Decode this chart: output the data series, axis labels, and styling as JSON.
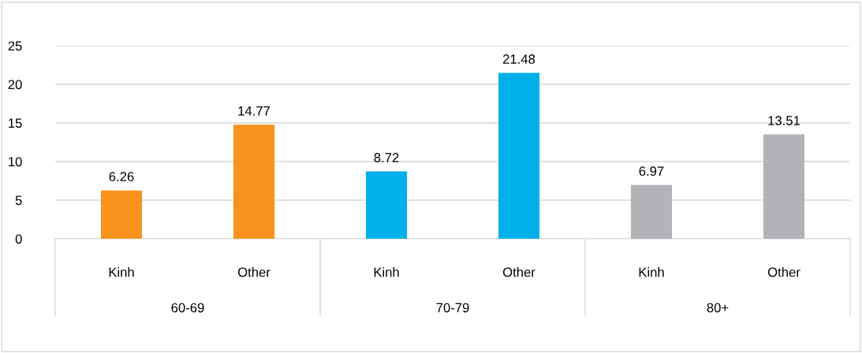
{
  "chart_data": {
    "type": "bar",
    "categories": [
      "Kinh",
      "Other",
      "Kinh",
      "Other",
      "Kinh",
      "Other"
    ],
    "values": [
      6.26,
      14.77,
      8.72,
      21.48,
      6.97,
      13.51
    ],
    "colors": [
      "#f7931e",
      "#f7931e",
      "#00b0e8",
      "#00b0e8",
      "#b1b3b6",
      "#b1b3b6"
    ],
    "ylim": [
      0,
      25
    ],
    "yticks": [
      0,
      5,
      10,
      15,
      20,
      25
    ],
    "grid": "y",
    "data_labels": true,
    "annotations": [
      "60-69",
      "70-79",
      "80+"
    ]
  }
}
